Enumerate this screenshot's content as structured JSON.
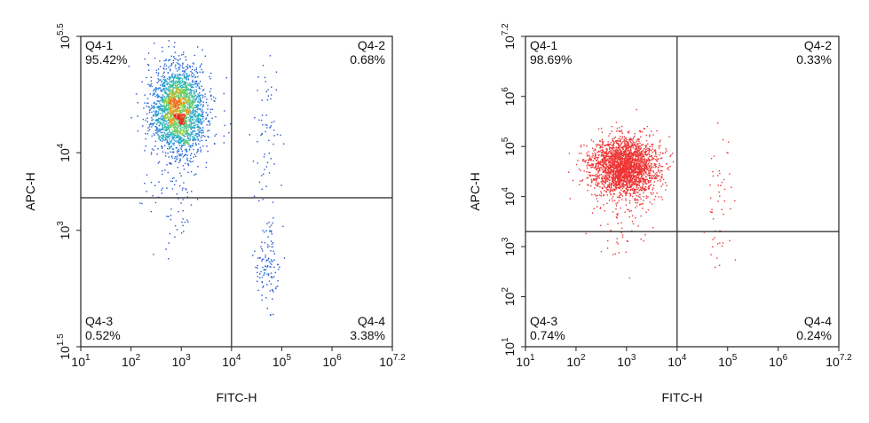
{
  "chart_data": [
    {
      "type": "scatter",
      "subtype": "flow-cytometry-density-dot-plot",
      "title": "",
      "xlabel": "FITC-H",
      "ylabel": "APC-H",
      "x_scale": "log10",
      "y_scale": "log10",
      "xlim_log10": [
        1,
        7.2
      ],
      "ylim_log10": [
        1.5,
        5.5
      ],
      "x_ticks": [
        {
          "base": "10",
          "exp": "1",
          "value": 1
        },
        {
          "base": "10",
          "exp": "2",
          "value": 2
        },
        {
          "base": "10",
          "exp": "3",
          "value": 3
        },
        {
          "base": "10",
          "exp": "4",
          "value": 4
        },
        {
          "base": "10",
          "exp": "5",
          "value": 5
        },
        {
          "base": "10",
          "exp": "6",
          "value": 6
        },
        {
          "base": "10",
          "exp": "7.2",
          "value": 7.2
        }
      ],
      "y_ticks": [
        {
          "base": "10",
          "exp": "1.5",
          "value": 1.5
        },
        {
          "base": "10",
          "exp": "3",
          "value": 3
        },
        {
          "base": "10",
          "exp": "4",
          "value": 4
        },
        {
          "base": "10",
          "exp": "5.5",
          "value": 5.5
        }
      ],
      "gate_log10": {
        "x": 4.0,
        "y": 3.42
      },
      "color_mode": "density",
      "grid": false,
      "quadrants": [
        {
          "name": "Q4-1",
          "percent": "95.42%",
          "position": "top-left"
        },
        {
          "name": "Q4-2",
          "percent": "0.68%",
          "position": "top-right"
        },
        {
          "name": "Q4-3",
          "percent": "0.52%",
          "position": "bottom-left"
        },
        {
          "name": "Q4-4",
          "percent": "3.38%",
          "position": "bottom-right"
        }
      ],
      "populations_log10": [
        {
          "x": 2.95,
          "y": 4.55,
          "sx": 0.28,
          "sy": 0.3,
          "rot": 0.35,
          "fraction": 0.9
        },
        {
          "x": 2.85,
          "y": 3.45,
          "sx": 0.3,
          "sy": 0.45,
          "rot": 0.0,
          "fraction": 0.03
        },
        {
          "x": 4.7,
          "y": 2.55,
          "sx": 0.13,
          "sy": 0.28,
          "rot": 0.0,
          "fraction": 0.045
        },
        {
          "x": 4.7,
          "y": 4.3,
          "sx": 0.14,
          "sy": 0.5,
          "rot": 0.0,
          "fraction": 0.025
        }
      ]
    },
    {
      "type": "scatter",
      "subtype": "flow-cytometry-dot-plot",
      "title": "",
      "xlabel": "FITC-H",
      "ylabel": "APC-H",
      "x_scale": "log10",
      "y_scale": "log10",
      "xlim_log10": [
        1,
        7.2
      ],
      "ylim_log10": [
        1,
        7.2
      ],
      "x_ticks": [
        {
          "base": "10",
          "exp": "1",
          "value": 1
        },
        {
          "base": "10",
          "exp": "2",
          "value": 2
        },
        {
          "base": "10",
          "exp": "3",
          "value": 3
        },
        {
          "base": "10",
          "exp": "4",
          "value": 4
        },
        {
          "base": "10",
          "exp": "5",
          "value": 5
        },
        {
          "base": "10",
          "exp": "6",
          "value": 6
        },
        {
          "base": "10",
          "exp": "7.2",
          "value": 7.2
        }
      ],
      "y_ticks": [
        {
          "base": "10",
          "exp": "1",
          "value": 1
        },
        {
          "base": "10",
          "exp": "2",
          "value": 2
        },
        {
          "base": "10",
          "exp": "3",
          "value": 3
        },
        {
          "base": "10",
          "exp": "4",
          "value": 4
        },
        {
          "base": "10",
          "exp": "5",
          "value": 5
        },
        {
          "base": "10",
          "exp": "6",
          "value": 6
        },
        {
          "base": "10",
          "exp": "7.2",
          "value": 7.2
        }
      ],
      "gate_log10": {
        "x": 4.0,
        "y": 3.3
      },
      "color_mode": "single",
      "dot_color": "#ee3333",
      "grid": false,
      "quadrants": [
        {
          "name": "Q4-1",
          "percent": "98.69%",
          "position": "top-left"
        },
        {
          "name": "Q4-2",
          "percent": "0.33%",
          "position": "top-right"
        },
        {
          "name": "Q4-3",
          "percent": "0.74%",
          "position": "bottom-left"
        },
        {
          "name": "Q4-4",
          "percent": "0.24%",
          "position": "bottom-right"
        }
      ],
      "populations_log10": [
        {
          "x": 2.95,
          "y": 4.6,
          "sx": 0.33,
          "sy": 0.28,
          "rot": 0.0,
          "fraction": 0.93
        },
        {
          "x": 2.9,
          "y": 3.9,
          "sx": 0.28,
          "sy": 0.55,
          "rot": 0.0,
          "fraction": 0.05
        },
        {
          "x": 4.85,
          "y": 3.9,
          "sx": 0.15,
          "sy": 0.7,
          "rot": 0.0,
          "fraction": 0.02
        }
      ]
    }
  ]
}
